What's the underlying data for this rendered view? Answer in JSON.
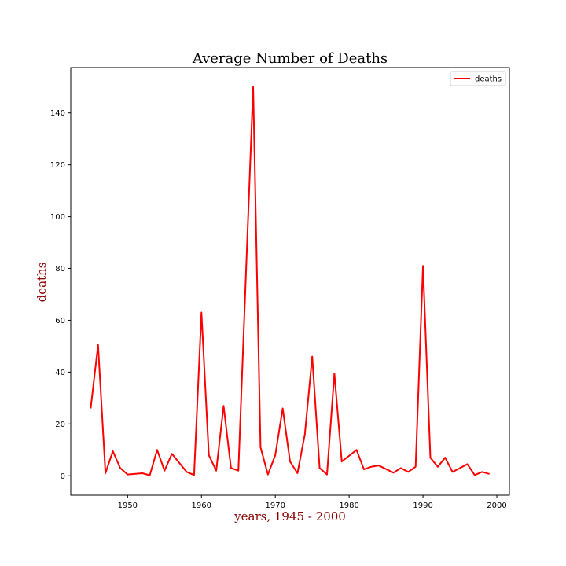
{
  "chart_data": {
    "type": "line",
    "title": "Average Number of Deaths",
    "xlabel": "years, 1945 - 2000",
    "ylabel": "deaths",
    "xlim": [
      1942.3,
      2001.7
    ],
    "ylim": [
      -7.5,
      157.5
    ],
    "xticks": [
      1950,
      1960,
      1970,
      1980,
      1990,
      2000
    ],
    "yticks": [
      0,
      20,
      40,
      60,
      80,
      100,
      120,
      140
    ],
    "grid": false,
    "legend_position": "top-right",
    "series": [
      {
        "name": "deaths",
        "color": "#ff0000",
        "x": [
          1945,
          1946,
          1947,
          1948,
          1949,
          1950,
          1952,
          1953,
          1954,
          1955,
          1956,
          1958,
          1959,
          1960,
          1961,
          1962,
          1963,
          1964,
          1965,
          1967,
          1968,
          1969,
          1970,
          1971,
          1972,
          1973,
          1974,
          1975,
          1976,
          1977,
          1978,
          1979,
          1981,
          1982,
          1983,
          1984,
          1986,
          1987,
          1988,
          1989,
          1990,
          1991,
          1992,
          1993,
          1994,
          1996,
          1997,
          1998,
          1999
        ],
        "y": [
          26,
          50.5,
          1,
          9.5,
          3,
          0.5,
          1,
          0.2,
          10,
          2,
          8.5,
          1.5,
          0.3,
          63,
          8,
          2,
          27,
          3,
          2,
          150,
          11,
          0.5,
          8,
          26,
          5.5,
          1,
          16,
          46,
          3,
          0.5,
          39.5,
          5.5,
          10,
          2.5,
          3.5,
          4,
          1.2,
          3,
          1.5,
          3.5,
          81,
          7,
          3.5,
          7,
          1.5,
          4.5,
          0.3,
          1.5,
          0.7
        ]
      }
    ]
  }
}
